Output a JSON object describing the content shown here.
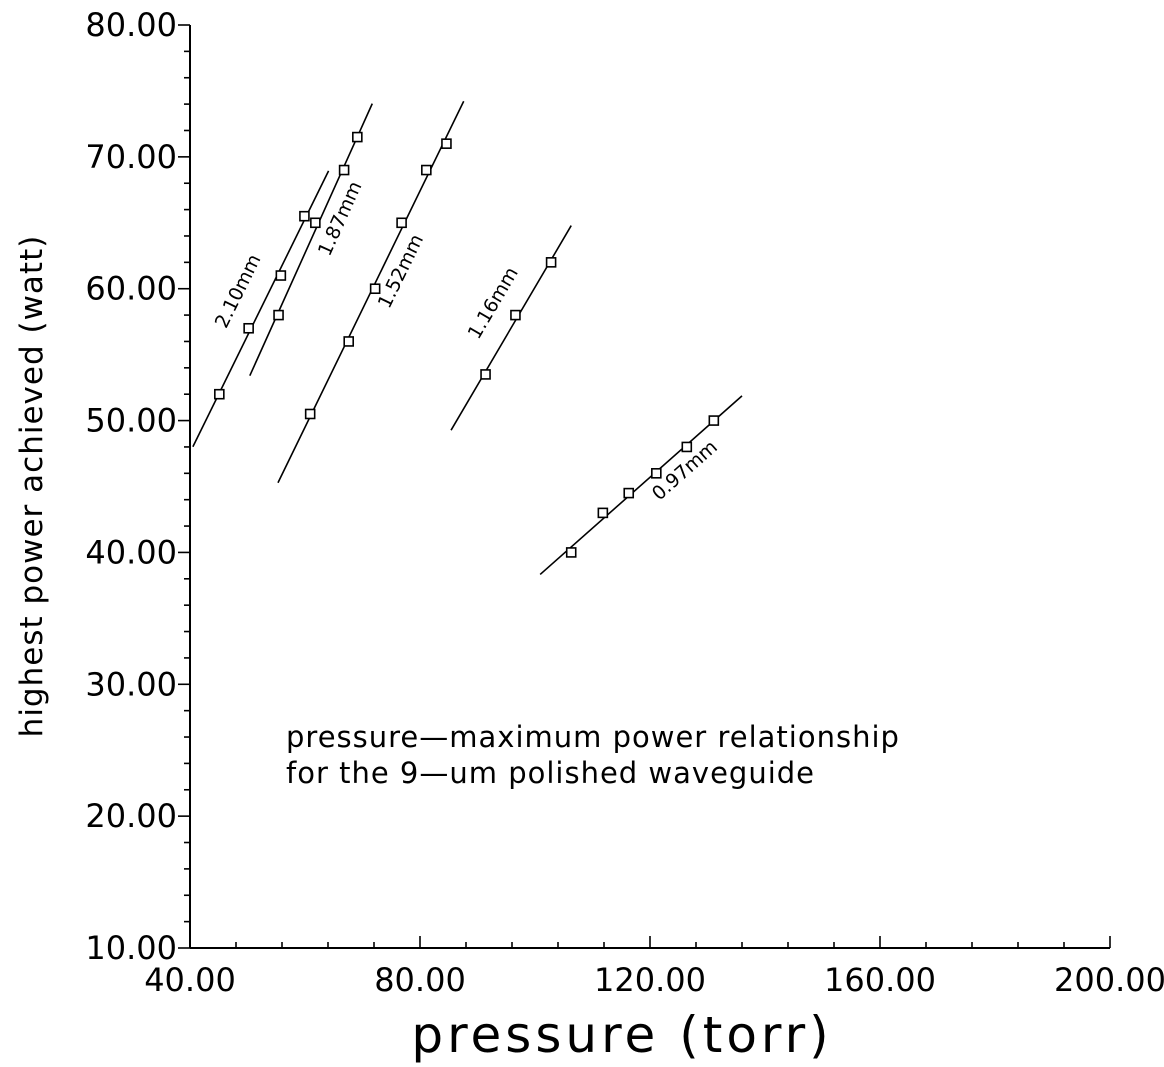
{
  "chart_data": {
    "type": "scatter",
    "title": "",
    "xlabel": "pressure (torr)",
    "ylabel": "highest power achieved (watt)",
    "xlim": [
      40,
      200
    ],
    "ylim": [
      10,
      80
    ],
    "x_ticks": [
      "40.00",
      "80.00",
      "120.00",
      "160.00",
      "200.00"
    ],
    "y_ticks": [
      "10.00",
      "20.00",
      "30.00",
      "40.00",
      "50.00",
      "60.00",
      "70.00",
      "80.00"
    ],
    "annotation": [
      "pressure—maximum power relationship",
      "for the 9—um polished waveguide"
    ],
    "series": [
      {
        "name": "2.10mm",
        "points": [
          [
            45.1,
            52.0
          ],
          [
            50.2,
            57.0
          ],
          [
            55.8,
            61.0
          ],
          [
            59.9,
            65.5
          ]
        ],
        "fit_x": [
          40.5,
          64.1
        ]
      },
      {
        "name": "1.87mm",
        "points": [
          [
            55.4,
            58.0
          ],
          [
            61.8,
            65.0
          ],
          [
            66.8,
            69.0
          ],
          [
            69.1,
            71.5
          ]
        ],
        "fit_x": [
          50.4,
          71.7
        ]
      },
      {
        "name": "1.52mm",
        "points": [
          [
            60.9,
            50.5
          ],
          [
            67.6,
            56.0
          ],
          [
            72.2,
            60.0
          ],
          [
            76.8,
            65.0
          ],
          [
            81.1,
            69.0
          ],
          [
            84.6,
            71.0
          ]
        ],
        "fit_x": [
          55.3,
          87.6
        ]
      },
      {
        "name": "1.16mm",
        "points": [
          [
            91.4,
            53.5
          ],
          [
            96.6,
            58.0
          ],
          [
            102.8,
            62.0
          ]
        ],
        "fit_x": [
          85.4,
          106.3
        ]
      },
      {
        "name": "0.97mm",
        "points": [
          [
            106.3,
            40.0
          ],
          [
            111.8,
            43.0
          ],
          [
            116.3,
            44.5
          ],
          [
            121.1,
            46.0
          ],
          [
            126.4,
            48.0
          ],
          [
            131.1,
            50.0
          ]
        ],
        "fit_x": [
          100.9,
          136.0
        ]
      }
    ]
  }
}
